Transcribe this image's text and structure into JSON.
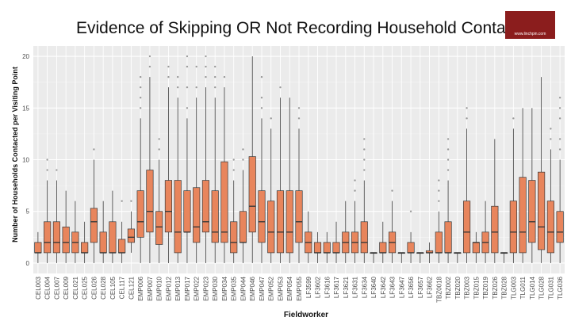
{
  "slide": {
    "title": "Evidence of Skipping OR Not Recording Household Contact",
    "logo_text": "www.linchpin.com"
  },
  "chart_data": {
    "type": "boxplot",
    "title": "Evidence of Skipping OR Not Recording Household Contact",
    "xlabel": "Fieldworker",
    "ylabel": "Number of Households Contacted per Visiting Point",
    "ylim": [
      -1,
      21
    ],
    "yticks": [
      0,
      5,
      10,
      15,
      20
    ],
    "grid": true,
    "legend": "none",
    "colors": {
      "box_fill": "#e8855c",
      "box_stroke": "#3a3a3a",
      "panel": "#ebebeb",
      "grid": "#ffffff",
      "outlier": "#9a9a9a"
    },
    "categories": [
      "CEL003",
      "CEL004",
      "CEL007",
      "CEL009",
      "CEL021",
      "CEL025",
      "CEL026",
      "CEL028",
      "CEL105",
      "CEL117",
      "CEL121",
      "EMP006",
      "EMP007",
      "EMP010",
      "EMP012",
      "EMP013",
      "EMP017",
      "EMP022",
      "EMP023",
      "EMP030",
      "EMP034",
      "EMP035",
      "EMP044",
      "EMP046",
      "EMP047",
      "EMP052",
      "EMP053",
      "EMP054",
      "EMP055",
      "LF3599",
      "LF3602",
      "LF3616",
      "LF3617",
      "LF3621",
      "LF3631",
      "LF3634",
      "LF3640",
      "LF3642",
      "LF3643",
      "LF3647",
      "LF3656",
      "LF3657",
      "LF3662",
      "TBZ0018",
      "TBZ002",
      "TBZ020",
      "TBZ003",
      "TBZ015",
      "TBZ019",
      "TBZ026",
      "TBZ028",
      "TLG003",
      "TLG011",
      "TLG014",
      "TLG028",
      "TLG031",
      "TLG036"
    ],
    "boxes": [
      {
        "min": 0,
        "q1": 1,
        "median": 1,
        "q3": 2,
        "max": 3,
        "outliers": []
      },
      {
        "min": 0,
        "q1": 1,
        "median": 2,
        "q3": 4,
        "max": 8,
        "outliers": [
          9,
          10
        ]
      },
      {
        "min": 0,
        "q1": 1,
        "median": 2,
        "q3": 4,
        "max": 8,
        "outliers": [
          9
        ]
      },
      {
        "min": 0,
        "q1": 1,
        "median": 2,
        "q3": 3.5,
        "max": 7,
        "outliers": []
      },
      {
        "min": 0,
        "q1": 1,
        "median": 2,
        "q3": 3,
        "max": 6,
        "outliers": []
      },
      {
        "min": 0,
        "q1": 1,
        "median": 1,
        "q3": 2,
        "max": 4,
        "outliers": []
      },
      {
        "min": 0,
        "q1": 2,
        "median": 4,
        "q3": 5.3,
        "max": 10,
        "outliers": [
          11
        ]
      },
      {
        "min": 0,
        "q1": 1,
        "median": 1,
        "q3": 3,
        "max": 6,
        "outliers": []
      },
      {
        "min": 0,
        "q1": 1,
        "median": 1,
        "q3": 4,
        "max": 7,
        "outliers": []
      },
      {
        "min": 0,
        "q1": 1,
        "median": 1,
        "q3": 2.3,
        "max": 4,
        "outliers": [
          6
        ]
      },
      {
        "min": 1,
        "q1": 2,
        "median": 2.5,
        "q3": 3.3,
        "max": 5,
        "outliers": [
          6
        ]
      },
      {
        "min": 0,
        "q1": 2.5,
        "median": 4,
        "q3": 7,
        "max": 14,
        "outliers": [
          15,
          16,
          17,
          18
        ]
      },
      {
        "min": 0,
        "q1": 3,
        "median": 5,
        "q3": 9,
        "max": 18,
        "outliers": [
          19,
          20
        ]
      },
      {
        "min": 0,
        "q1": 1.8,
        "median": 3.5,
        "q3": 5,
        "max": 10,
        "outliers": [
          11,
          12
        ]
      },
      {
        "min": 0,
        "q1": 3,
        "median": 5,
        "q3": 8,
        "max": 17,
        "outliers": [
          18,
          19
        ]
      },
      {
        "min": 0,
        "q1": 1,
        "median": 3,
        "q3": 8,
        "max": 16,
        "outliers": [
          17,
          18
        ]
      },
      {
        "min": 0,
        "q1": 3,
        "median": 3,
        "q3": 7,
        "max": 14,
        "outliers": [
          15,
          17,
          19,
          20
        ]
      },
      {
        "min": 0,
        "q1": 2,
        "median": 3.5,
        "q3": 7.3,
        "max": 16,
        "outliers": [
          17,
          19
        ]
      },
      {
        "min": 0,
        "q1": 3,
        "median": 4,
        "q3": 8,
        "max": 17,
        "outliers": [
          18,
          19,
          20
        ]
      },
      {
        "min": 0,
        "q1": 2,
        "median": 3,
        "q3": 7,
        "max": 16,
        "outliers": [
          17,
          18,
          19
        ]
      },
      {
        "min": 0,
        "q1": 2,
        "median": 3,
        "q3": 9.8,
        "max": 17,
        "outliers": [
          18
        ]
      },
      {
        "min": 0,
        "q1": 1,
        "median": 2,
        "q3": 4,
        "max": 8,
        "outliers": [
          9,
          10
        ]
      },
      {
        "min": 0,
        "q1": 2,
        "median": 2,
        "q3": 5,
        "max": 9,
        "outliers": [
          10,
          11
        ]
      },
      {
        "min": 0,
        "q1": 3,
        "median": 5.5,
        "q3": 10.3,
        "max": 20,
        "outliers": []
      },
      {
        "min": 0,
        "q1": 2,
        "median": 4,
        "q3": 7,
        "max": 14,
        "outliers": [
          15,
          16,
          18
        ]
      },
      {
        "min": 0,
        "q1": 1,
        "median": 3,
        "q3": 6,
        "max": 13,
        "outliers": [
          14
        ]
      },
      {
        "min": 0,
        "q1": 1,
        "median": 3,
        "q3": 7,
        "max": 16,
        "outliers": [
          17
        ]
      },
      {
        "min": 0,
        "q1": 1,
        "median": 3,
        "q3": 7,
        "max": 16,
        "outliers": []
      },
      {
        "min": 0,
        "q1": 2,
        "median": 4,
        "q3": 7,
        "max": 13,
        "outliers": [
          14,
          15
        ]
      },
      {
        "min": 0,
        "q1": 1,
        "median": 2,
        "q3": 3,
        "max": 5,
        "outliers": []
      },
      {
        "min": 0,
        "q1": 1,
        "median": 1,
        "q3": 2,
        "max": 3,
        "outliers": []
      },
      {
        "min": 0,
        "q1": 1,
        "median": 1,
        "q3": 2,
        "max": 3,
        "outliers": []
      },
      {
        "min": 0,
        "q1": 1,
        "median": 1,
        "q3": 2,
        "max": 4,
        "outliers": []
      },
      {
        "min": 0,
        "q1": 1,
        "median": 2,
        "q3": 3,
        "max": 6,
        "outliers": []
      },
      {
        "min": 0,
        "q1": 1,
        "median": 2,
        "q3": 3,
        "max": 6,
        "outliers": [
          7,
          8
        ]
      },
      {
        "min": 0,
        "q1": 1,
        "median": 2,
        "q3": 4,
        "max": 8,
        "outliers": [
          9,
          10,
          11,
          12
        ]
      },
      {
        "min": 0,
        "q1": 1,
        "median": 1,
        "q3": 1,
        "max": 1,
        "outliers": []
      },
      {
        "min": 0,
        "q1": 1,
        "median": 1,
        "q3": 2,
        "max": 4,
        "outliers": []
      },
      {
        "min": 0,
        "q1": 1,
        "median": 2,
        "q3": 3,
        "max": 6,
        "outliers": [
          7
        ]
      },
      {
        "min": 0,
        "q1": 1,
        "median": 1,
        "q3": 1,
        "max": 1,
        "outliers": []
      },
      {
        "min": 0,
        "q1": 1,
        "median": 1,
        "q3": 2,
        "max": 3,
        "outliers": [
          5
        ]
      },
      {
        "min": 0,
        "q1": 1,
        "median": 1,
        "q3": 1,
        "max": 1,
        "outliers": []
      },
      {
        "min": 0,
        "q1": 1,
        "median": 1,
        "q3": 1.2,
        "max": 2,
        "outliers": []
      },
      {
        "min": 0,
        "q1": 1,
        "median": 1,
        "q3": 3,
        "max": 5,
        "outliers": [
          6,
          7,
          8
        ]
      },
      {
        "min": 0,
        "q1": 1,
        "median": 1,
        "q3": 4,
        "max": 8,
        "outliers": [
          9,
          10,
          11,
          12
        ]
      },
      {
        "min": 0,
        "q1": 1,
        "median": 1,
        "q3": 1,
        "max": 1,
        "outliers": []
      },
      {
        "min": 0,
        "q1": 1,
        "median": 3,
        "q3": 6,
        "max": 13,
        "outliers": [
          14,
          15
        ]
      },
      {
        "min": 0,
        "q1": 1,
        "median": 2,
        "q3": 2,
        "max": 3,
        "outliers": []
      },
      {
        "min": 0,
        "q1": 1,
        "median": 2,
        "q3": 3,
        "max": 6,
        "outliers": []
      },
      {
        "min": 0,
        "q1": 1,
        "median": 3,
        "q3": 5.5,
        "max": 12,
        "outliers": []
      },
      {
        "min": 0,
        "q1": 1,
        "median": 1,
        "q3": 1,
        "max": 1,
        "outliers": []
      },
      {
        "min": 0,
        "q1": 1,
        "median": 3,
        "q3": 6,
        "max": 13,
        "outliers": [
          14
        ]
      },
      {
        "min": 0,
        "q1": 1,
        "median": 3,
        "q3": 8.3,
        "max": 15,
        "outliers": []
      },
      {
        "min": 0,
        "q1": 2,
        "median": 4,
        "q3": 8,
        "max": 15,
        "outliers": []
      },
      {
        "min": 0,
        "q1": 1.3,
        "median": 3.5,
        "q3": 8.8,
        "max": 18,
        "outliers": []
      },
      {
        "min": 0,
        "q1": 1,
        "median": 3,
        "q3": 6,
        "max": 11,
        "outliers": [
          12,
          13
        ]
      },
      {
        "min": 0,
        "q1": 2,
        "median": 3,
        "q3": 5,
        "max": 10,
        "outliers": [
          11,
          12,
          14,
          15,
          16
        ]
      }
    ]
  }
}
